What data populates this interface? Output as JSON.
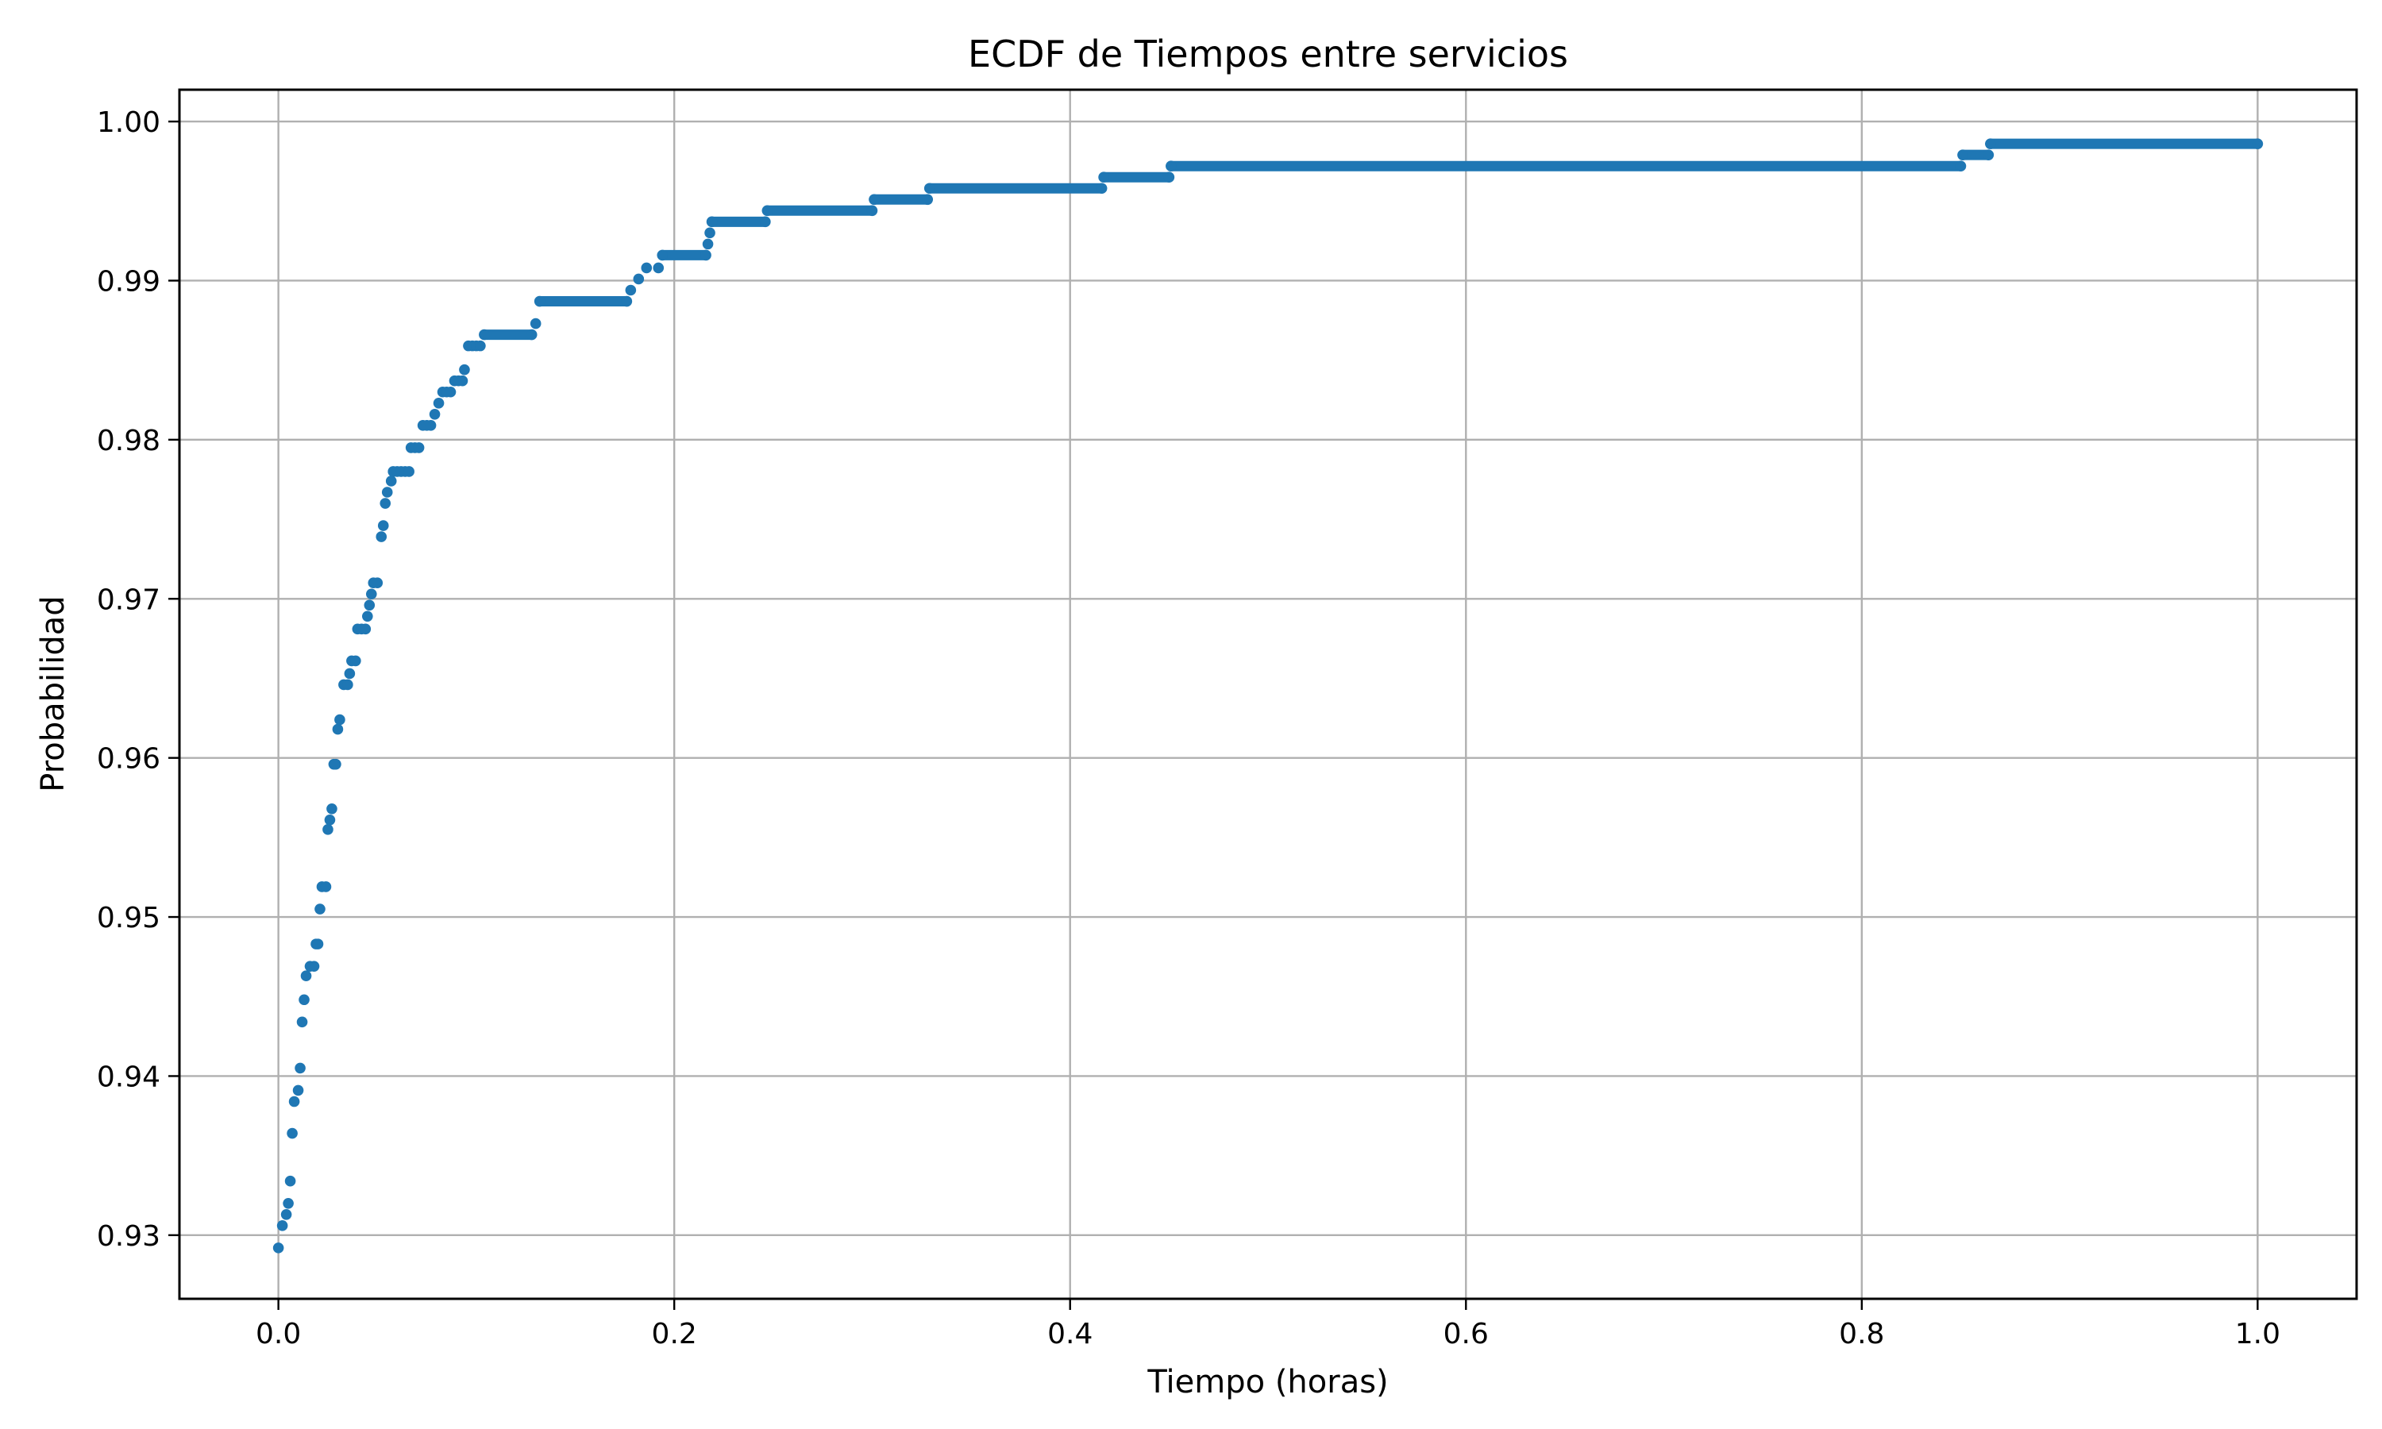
{
  "chart_data": {
    "type": "scatter",
    "title": "ECDF de Tiempos entre servicios",
    "xlabel": "Tiempo (horas)",
    "ylabel": "Probabilidad",
    "xlim": [
      -0.05,
      1.05
    ],
    "ylim": [
      0.926,
      1.002
    ],
    "xticks": [
      0.0,
      0.2,
      0.4,
      0.6,
      0.8,
      1.0
    ],
    "xtick_labels": [
      "0.0",
      "0.2",
      "0.4",
      "0.6",
      "0.8",
      "1.0"
    ],
    "yticks": [
      0.93,
      0.94,
      0.95,
      0.96,
      0.97,
      0.98,
      0.99,
      1.0
    ],
    "ytick_labels": [
      "0.93",
      "0.94",
      "0.95",
      "0.96",
      "0.97",
      "0.98",
      "0.99",
      "1.00"
    ],
    "grid": true,
    "legend": "none",
    "color": "#1f77b4",
    "series": [
      {
        "points": [
          [
            0.0,
            0.9292
          ],
          [
            0.002,
            0.9306
          ],
          [
            0.004,
            0.9313
          ],
          [
            0.005,
            0.932
          ],
          [
            0.006,
            0.9334
          ],
          [
            0.007,
            0.9364
          ],
          [
            0.008,
            0.9384
          ],
          [
            0.01,
            0.9391
          ],
          [
            0.011,
            0.9405
          ],
          [
            0.012,
            0.9434
          ],
          [
            0.013,
            0.9448
          ],
          [
            0.014,
            0.9463
          ],
          [
            0.016,
            0.9469
          ],
          [
            0.018,
            0.9469
          ],
          [
            0.019,
            0.9483
          ],
          [
            0.02,
            0.9483
          ],
          [
            0.021,
            0.9505
          ],
          [
            0.022,
            0.9519
          ],
          [
            0.024,
            0.9519
          ],
          [
            0.025,
            0.9555
          ],
          [
            0.026,
            0.9561
          ],
          [
            0.027,
            0.9568
          ],
          [
            0.028,
            0.9596
          ],
          [
            0.029,
            0.9596
          ],
          [
            0.03,
            0.9618
          ],
          [
            0.031,
            0.9624
          ],
          [
            0.033,
            0.9646
          ],
          [
            0.035,
            0.9646
          ],
          [
            0.036,
            0.9653
          ],
          [
            0.037,
            0.9661
          ],
          [
            0.039,
            0.9661
          ],
          [
            0.04,
            0.9681
          ],
          [
            0.042,
            0.9681
          ],
          [
            0.044,
            0.9681
          ],
          [
            0.045,
            0.9689
          ],
          [
            0.046,
            0.9696
          ],
          [
            0.047,
            0.9703
          ],
          [
            0.048,
            0.971
          ],
          [
            0.05,
            0.971
          ],
          [
            0.052,
            0.9739
          ],
          [
            0.053,
            0.9746
          ],
          [
            0.054,
            0.976
          ],
          [
            0.055,
            0.9767
          ],
          [
            0.057,
            0.9774
          ],
          [
            0.058,
            0.978
          ],
          [
            0.06,
            0.978
          ],
          [
            0.062,
            0.978
          ],
          [
            0.064,
            0.978
          ],
          [
            0.066,
            0.978
          ],
          [
            0.067,
            0.9795
          ],
          [
            0.069,
            0.9795
          ],
          [
            0.071,
            0.9795
          ],
          [
            0.073,
            0.9809
          ],
          [
            0.075,
            0.9809
          ],
          [
            0.077,
            0.9809
          ],
          [
            0.079,
            0.9816
          ],
          [
            0.081,
            0.9823
          ],
          [
            0.083,
            0.983
          ],
          [
            0.085,
            0.983
          ],
          [
            0.087,
            0.983
          ],
          [
            0.089,
            0.9837
          ],
          [
            0.091,
            0.9837
          ],
          [
            0.093,
            0.9837
          ],
          [
            0.094,
            0.9844
          ],
          [
            0.096,
            0.9859
          ],
          [
            0.098,
            0.9859
          ],
          [
            0.1,
            0.9859
          ],
          [
            0.102,
            0.9859
          ],
          [
            0.104,
            0.9866
          ],
          [
            0.128,
            0.9866
          ],
          [
            0.13,
            0.9873
          ],
          [
            0.132,
            0.9887
          ],
          [
            0.176,
            0.9887
          ],
          [
            0.178,
            0.9894
          ],
          [
            0.182,
            0.9901
          ],
          [
            0.186,
            0.9908
          ],
          [
            0.192,
            0.9908
          ],
          [
            0.194,
            0.9916
          ],
          [
            0.216,
            0.9916
          ],
          [
            0.217,
            0.9923
          ],
          [
            0.218,
            0.993
          ],
          [
            0.219,
            0.9937
          ],
          [
            0.246,
            0.9937
          ],
          [
            0.247,
            0.9944
          ],
          [
            0.3,
            0.9944
          ],
          [
            0.301,
            0.9951
          ],
          [
            0.328,
            0.9951
          ],
          [
            0.329,
            0.9958
          ],
          [
            0.416,
            0.9958
          ],
          [
            0.417,
            0.9965
          ],
          [
            0.45,
            0.9965
          ],
          [
            0.451,
            0.9972
          ],
          [
            0.85,
            0.9972
          ],
          [
            0.851,
            0.9979
          ],
          [
            0.864,
            0.9979
          ],
          [
            0.865,
            0.9986
          ],
          [
            1.0,
            0.9986
          ]
        ],
        "dense_runs": [
          [
            0.104,
            0.128,
            0.9866
          ],
          [
            0.132,
            0.176,
            0.9887
          ],
          [
            0.194,
            0.216,
            0.9916
          ],
          [
            0.219,
            0.246,
            0.9937
          ],
          [
            0.247,
            0.3,
            0.9944
          ],
          [
            0.301,
            0.328,
            0.9951
          ],
          [
            0.329,
            0.416,
            0.9958
          ],
          [
            0.417,
            0.45,
            0.9965
          ],
          [
            0.451,
            0.85,
            0.9972
          ],
          [
            0.851,
            0.864,
            0.9979
          ],
          [
            0.865,
            1.0,
            0.9986
          ]
        ]
      }
    ]
  }
}
